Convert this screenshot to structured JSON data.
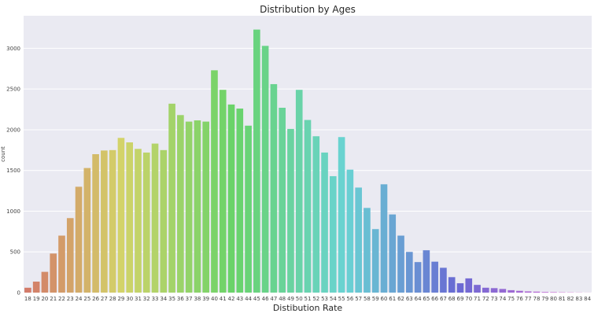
{
  "chart_data": {
    "type": "bar",
    "title": "Distribution by Ages",
    "xlabel": "Distibution Rate",
    "ylabel": "count",
    "ylim": [
      0,
      3400
    ],
    "yticks": [
      0,
      500,
      1000,
      1500,
      2000,
      2500,
      3000
    ],
    "grid": true,
    "categories": [
      "18",
      "19",
      "20",
      "21",
      "22",
      "23",
      "24",
      "25",
      "26",
      "27",
      "28",
      "29",
      "30",
      "31",
      "32",
      "33",
      "34",
      "35",
      "36",
      "37",
      "38",
      "39",
      "40",
      "41",
      "42",
      "43",
      "44",
      "45",
      "46",
      "47",
      "48",
      "49",
      "50",
      "51",
      "52",
      "53",
      "54",
      "55",
      "56",
      "57",
      "58",
      "59",
      "60",
      "61",
      "62",
      "63",
      "64",
      "65",
      "66",
      "67",
      "68",
      "69",
      "70",
      "71",
      "72",
      "73",
      "74",
      "75",
      "76",
      "77",
      "78",
      "79",
      "80",
      "81",
      "82",
      "83",
      "84"
    ],
    "values": [
      60,
      135,
      255,
      480,
      700,
      915,
      1300,
      1530,
      1700,
      1745,
      1750,
      1900,
      1845,
      1765,
      1720,
      1830,
      1750,
      2320,
      2180,
      2100,
      2115,
      2100,
      2730,
      2490,
      2310,
      2260,
      2050,
      3230,
      3030,
      2560,
      2270,
      2010,
      2490,
      2120,
      1920,
      1720,
      1430,
      1910,
      1510,
      1290,
      1040,
      780,
      1330,
      960,
      700,
      500,
      375,
      520,
      380,
      305,
      190,
      115,
      175,
      95,
      60,
      55,
      45,
      30,
      22,
      15,
      12,
      8,
      6,
      4,
      3,
      2,
      1
    ]
  }
}
